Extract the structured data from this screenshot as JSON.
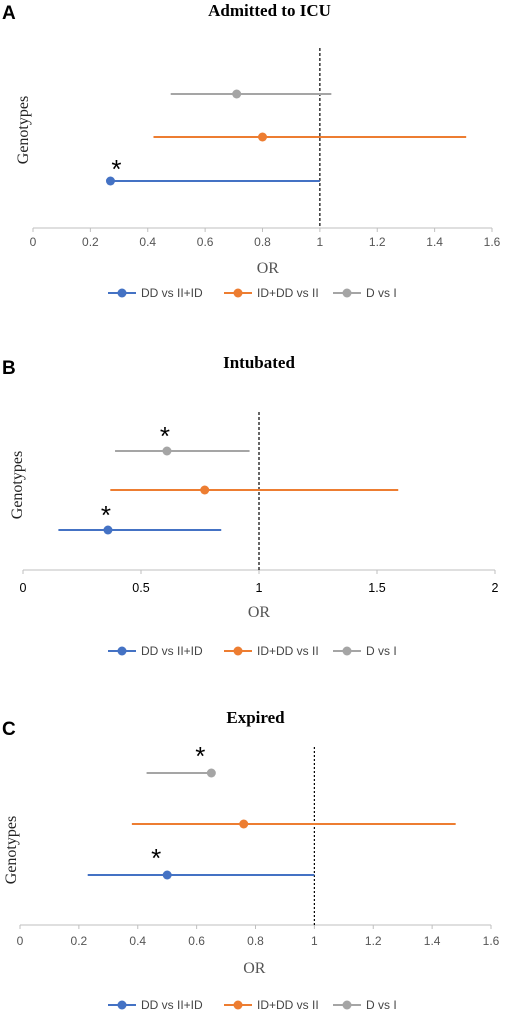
{
  "chart_data": [
    {
      "panel": "A",
      "type": "scatter",
      "title": "Admitted to ICU",
      "xlabel": "OR",
      "ylabel": "Genotypes",
      "xlim": [
        0,
        1.6
      ],
      "xticks": [
        0,
        0.2,
        0.4,
        0.6,
        0.8,
        1,
        1.2,
        1.4,
        1.6
      ],
      "xtick_labels": [
        "0",
        "0.2",
        "0.4",
        "0.6",
        "0.8",
        "1",
        "1.2",
        "1.4",
        "1.6"
      ],
      "reference_line": 1,
      "series": [
        {
          "name": "DD vs II+ID",
          "color": "#4472C4",
          "or": 0.27,
          "ci": [
            0.27,
            1.0
          ],
          "significant": true
        },
        {
          "name": "ID+DD vs II",
          "color": "#ED7D31",
          "or": 0.8,
          "ci": [
            0.42,
            1.51
          ],
          "significant": false
        },
        {
          "name": "D vs I",
          "color": "#A5A5A5",
          "or": 0.71,
          "ci": [
            0.48,
            1.04
          ],
          "significant": false
        }
      ],
      "significance_marker": "*"
    },
    {
      "panel": "B",
      "type": "scatter",
      "title": "Intubated",
      "xlabel": "OR",
      "ylabel": "Genotypes",
      "xlim": [
        0,
        2
      ],
      "xticks": [
        0,
        0.5,
        1,
        1.5,
        2
      ],
      "xtick_labels": [
        "0",
        "0.5",
        "1",
        "1.5",
        "2"
      ],
      "reference_line": 1,
      "series": [
        {
          "name": "DD vs II+ID",
          "color": "#4472C4",
          "or": 0.36,
          "ci": [
            0.15,
            0.84
          ],
          "significant": true
        },
        {
          "name": "ID+DD vs II",
          "color": "#ED7D31",
          "or": 0.77,
          "ci": [
            0.37,
            1.59
          ],
          "significant": false
        },
        {
          "name": "D vs I",
          "color": "#A5A5A5",
          "or": 0.61,
          "ci": [
            0.39,
            0.96
          ],
          "significant": true
        }
      ],
      "significance_marker": "*"
    },
    {
      "panel": "C",
      "type": "scatter",
      "title": "Expired",
      "xlabel": "OR",
      "ylabel": "Genotypes",
      "xlim": [
        0,
        1.6
      ],
      "xticks": [
        0,
        0.2,
        0.4,
        0.6,
        0.8,
        1,
        1.2,
        1.4,
        1.6
      ],
      "xtick_labels": [
        "0",
        "0.2",
        "0.4",
        "0.6",
        "0.8",
        "1",
        "1.2",
        "1.4",
        "1.6"
      ],
      "reference_line": 1,
      "series": [
        {
          "name": "DD vs II+ID",
          "color": "#4472C4",
          "or": 0.5,
          "ci": [
            0.23,
            1.0
          ],
          "significant": true
        },
        {
          "name": "ID+DD vs II",
          "color": "#ED7D31",
          "or": 0.76,
          "ci": [
            0.38,
            1.48
          ],
          "significant": false
        },
        {
          "name": "D vs I",
          "color": "#A5A5A5",
          "or": 0.65,
          "ci": [
            0.43,
            0.65
          ],
          "significant": true
        }
      ],
      "significance_marker": "*"
    }
  ]
}
